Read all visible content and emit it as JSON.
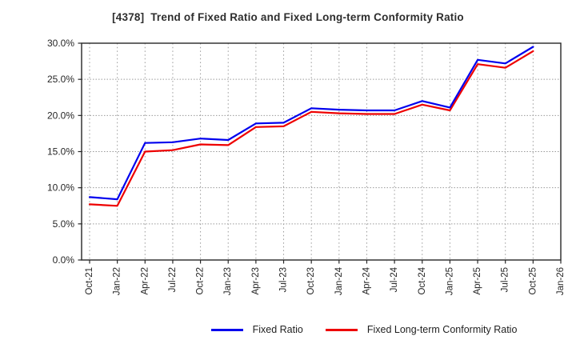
{
  "chart_data": {
    "type": "line",
    "title": "[4378]  Trend of Fixed Ratio and Fixed Long-term Conformity Ratio",
    "x_labels": [
      "Oct-21",
      "Jan-22",
      "Apr-22",
      "Jul-22",
      "Oct-22",
      "Jan-23",
      "Apr-23",
      "Jul-23",
      "Oct-23",
      "Jan-24",
      "Apr-24",
      "Jul-24",
      "Oct-24",
      "Jan-25",
      "Apr-25",
      "Jul-25",
      "Oct-25",
      "Jan-26"
    ],
    "series": [
      {
        "name": "Fixed Ratio",
        "color": "#0000ee",
        "values": [
          8.7,
          8.4,
          16.2,
          16.3,
          16.8,
          16.6,
          18.9,
          19.0,
          21.0,
          20.8,
          20.7,
          20.7,
          22.0,
          21.1,
          27.7,
          27.2,
          29.5
        ]
      },
      {
        "name": "Fixed Long-term Conformity Ratio",
        "color": "#ee0000",
        "values": [
          7.7,
          7.5,
          15.0,
          15.2,
          16.0,
          15.9,
          18.4,
          18.5,
          20.5,
          20.3,
          20.2,
          20.2,
          21.5,
          20.7,
          27.1,
          26.6,
          28.9
        ]
      }
    ],
    "ylim": [
      0,
      30
    ],
    "ytick_step": 5,
    "ytick_labels": [
      "0.0%",
      "5.0%",
      "10.0%",
      "15.0%",
      "20.0%",
      "25.0%",
      "30.0%"
    ],
    "grid": "dotted",
    "legend_position": "bottom",
    "axis_color": "#262626",
    "grid_color": "#9a9a9a",
    "tick_label_color": "#262626"
  }
}
